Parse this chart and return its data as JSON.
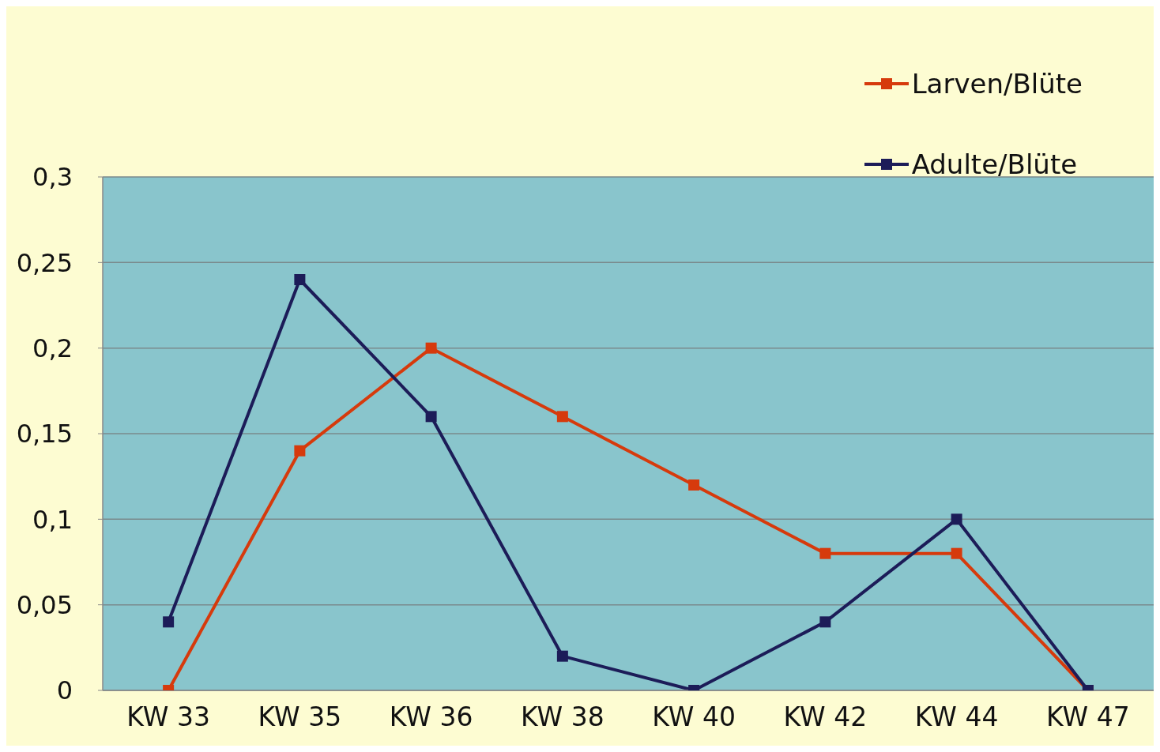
{
  "chart_data": {
    "type": "line",
    "categories": [
      "KW 33",
      "KW 35",
      "KW 36",
      "KW 38",
      "KW 40",
      "KW 42",
      "KW 44",
      "KW 47"
    ],
    "series": [
      {
        "name": "Larven/Blüte",
        "color": "#d63a0c",
        "values": [
          0,
          0.14,
          0.2,
          0.16,
          0.12,
          0.08,
          0.08,
          0
        ]
      },
      {
        "name": "Adulte/Blüte",
        "color": "#1c1c58",
        "values": [
          0.04,
          0.24,
          0.16,
          0.02,
          0,
          0.04,
          0.1,
          0
        ]
      }
    ],
    "ylim": [
      0,
      0.3
    ],
    "yticks": [
      {
        "value": 0,
        "label": "0"
      },
      {
        "value": 0.05,
        "label": "0,05"
      },
      {
        "value": 0.1,
        "label": "0,1"
      },
      {
        "value": 0.15,
        "label": "0,15"
      },
      {
        "value": 0.2,
        "label": "0,2"
      },
      {
        "value": 0.25,
        "label": "0,25"
      },
      {
        "value": 0.3,
        "label": "0,3"
      }
    ],
    "grid": "y",
    "legend": "top right",
    "marker": "square",
    "line_style": "solid"
  }
}
